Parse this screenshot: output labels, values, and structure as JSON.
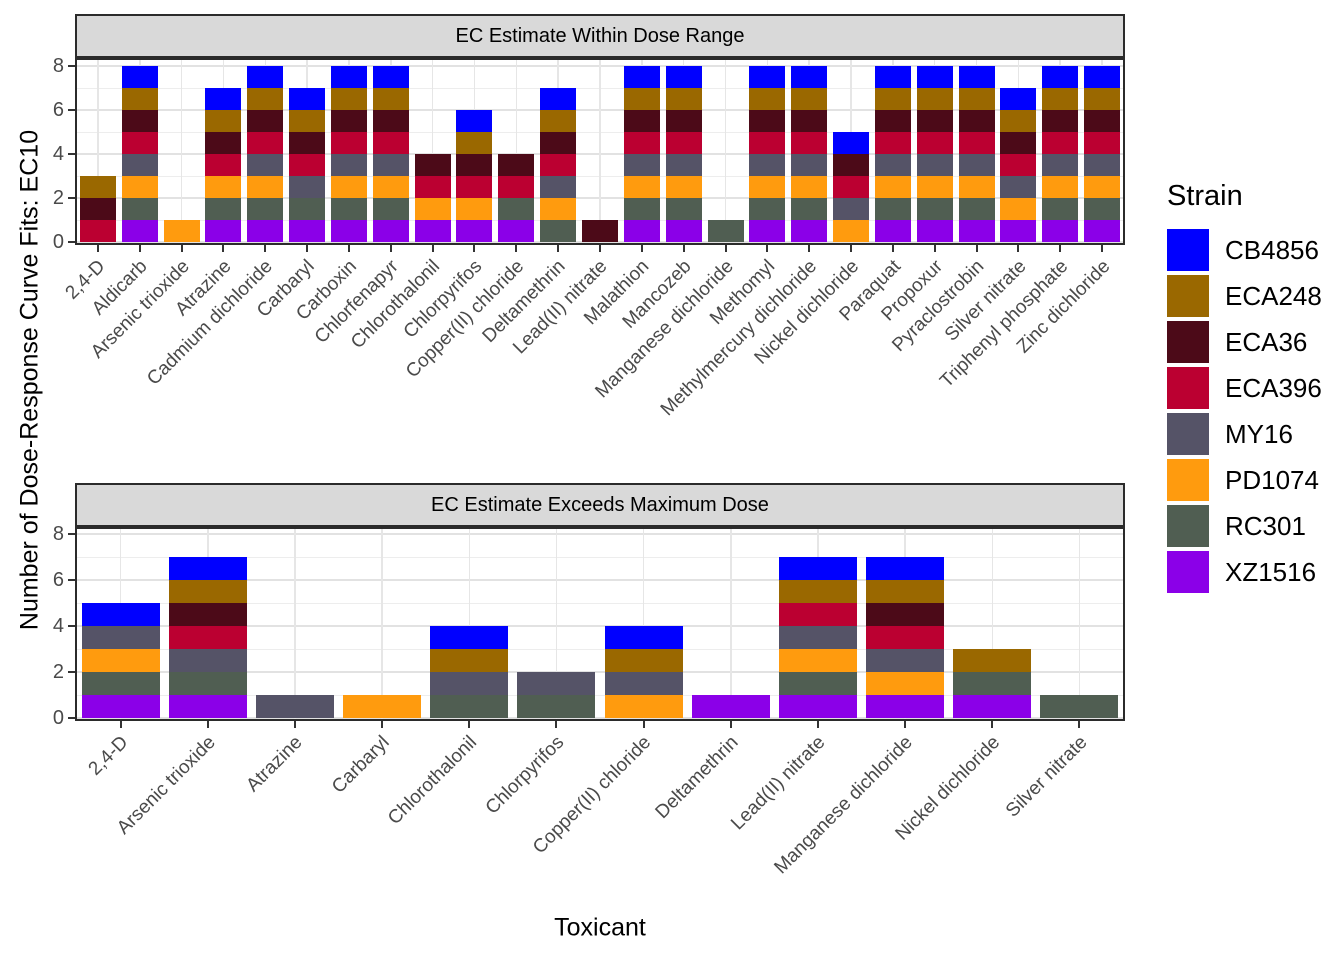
{
  "figure": {
    "x_axis_title": "Toxicant",
    "y_axis_title": "Number of Dose-Response Curve Fits: EC10"
  },
  "legend": {
    "title": "Strain",
    "entries": [
      {
        "label": "CB4856",
        "color": "#0000FF"
      },
      {
        "label": "ECA248",
        "color": "#9A6800"
      },
      {
        "label": "ECA36",
        "color": "#4C0A18"
      },
      {
        "label": "ECA396",
        "color": "#BB0031"
      },
      {
        "label": "MY16",
        "color": "#555367"
      },
      {
        "label": "PD1074",
        "color": "#FF9B0E"
      },
      {
        "label": "RC301",
        "color": "#505E52"
      },
      {
        "label": "XZ1516",
        "color": "#8B00E8"
      }
    ]
  },
  "stack_order_bottom_to_top": [
    "XZ1516",
    "RC301",
    "PD1074",
    "MY16",
    "ECA396",
    "ECA36",
    "ECA248",
    "CB4856"
  ],
  "chart_data": [
    {
      "type": "bar",
      "stacked": true,
      "facet_title": "EC Estimate Within Dose Range",
      "xlabel": "Toxicant",
      "ylabel": "Number of Dose-Response Curve Fits: EC10",
      "ylim": [
        0,
        8.4
      ],
      "yticks": [
        0,
        2,
        4,
        6,
        8
      ],
      "grid": true,
      "legend_position": "right",
      "categories": [
        "2,4-D",
        "Aldicarb",
        "Arsenic trioxide",
        "Atrazine",
        "Cadmium dichloride",
        "Carbaryl",
        "Carboxin",
        "Chlorfenapyr",
        "Chlorothalonil",
        "Chlorpyrifos",
        "Copper(II) chloride",
        "Deltamethrin",
        "Lead(II) nitrate",
        "Malathion",
        "Mancozeb",
        "Manganese dichloride",
        "Methomyl",
        "Methylmercury dichloride",
        "Nickel dichloride",
        "Paraquat",
        "Propoxur",
        "Pyraclostrobin",
        "Silver nitrate",
        "Triphenyl phosphate",
        "Zinc dichloride"
      ],
      "series": [
        {
          "name": "CB4856",
          "values": [
            0,
            1,
            0,
            1,
            1,
            1,
            1,
            1,
            0,
            1,
            0,
            1,
            0,
            1,
            1,
            0,
            1,
            1,
            1,
            1,
            1,
            1,
            1,
            1,
            1
          ]
        },
        {
          "name": "ECA248",
          "values": [
            1,
            1,
            0,
            1,
            1,
            1,
            1,
            1,
            0,
            1,
            0,
            1,
            0,
            1,
            1,
            0,
            1,
            1,
            0,
            1,
            1,
            1,
            1,
            1,
            1
          ]
        },
        {
          "name": "ECA36",
          "values": [
            1,
            1,
            0,
            1,
            1,
            1,
            1,
            1,
            1,
            1,
            1,
            1,
            1,
            1,
            1,
            0,
            1,
            1,
            1,
            1,
            1,
            1,
            1,
            1,
            1
          ]
        },
        {
          "name": "ECA396",
          "values": [
            1,
            1,
            0,
            1,
            1,
            1,
            1,
            1,
            1,
            1,
            1,
            1,
            0,
            1,
            1,
            0,
            1,
            1,
            1,
            1,
            1,
            1,
            1,
            1,
            1
          ]
        },
        {
          "name": "MY16",
          "values": [
            0,
            1,
            0,
            0,
            1,
            1,
            1,
            1,
            0,
            0,
            0,
            1,
            0,
            1,
            1,
            0,
            1,
            1,
            1,
            1,
            1,
            1,
            1,
            1,
            1
          ]
        },
        {
          "name": "PD1074",
          "values": [
            0,
            1,
            1,
            1,
            1,
            0,
            1,
            1,
            1,
            1,
            0,
            1,
            0,
            1,
            1,
            0,
            1,
            1,
            1,
            1,
            1,
            1,
            1,
            1,
            1
          ]
        },
        {
          "name": "RC301",
          "values": [
            0,
            1,
            0,
            1,
            1,
            1,
            1,
            1,
            0,
            0,
            1,
            1,
            0,
            1,
            1,
            1,
            1,
            1,
            0,
            1,
            1,
            1,
            0,
            1,
            1
          ]
        },
        {
          "name": "XZ1516",
          "values": [
            0,
            1,
            0,
            1,
            1,
            1,
            1,
            1,
            1,
            1,
            1,
            0,
            0,
            1,
            1,
            0,
            1,
            1,
            0,
            1,
            1,
            1,
            1,
            1,
            1
          ]
        }
      ]
    },
    {
      "type": "bar",
      "stacked": true,
      "facet_title": "EC Estimate Exceeds Maximum Dose",
      "xlabel": "Toxicant",
      "ylabel": "Number of Dose-Response Curve Fits: EC10",
      "ylim": [
        0,
        8.4
      ],
      "yticks": [
        0,
        2,
        4,
        6,
        8
      ],
      "grid": true,
      "legend_position": "right",
      "categories": [
        "2,4-D",
        "Arsenic trioxide",
        "Atrazine",
        "Carbaryl",
        "Chlorothalonil",
        "Chlorpyrifos",
        "Copper(II) chloride",
        "Deltamethrin",
        "Lead(II) nitrate",
        "Manganese dichloride",
        "Nickel dichloride",
        "Silver nitrate"
      ],
      "series": [
        {
          "name": "CB4856",
          "values": [
            1,
            1,
            0,
            0,
            1,
            0,
            1,
            0,
            1,
            1,
            0,
            0
          ]
        },
        {
          "name": "ECA248",
          "values": [
            0,
            1,
            0,
            0,
            1,
            0,
            1,
            0,
            1,
            1,
            1,
            0
          ]
        },
        {
          "name": "ECA36",
          "values": [
            0,
            1,
            0,
            0,
            0,
            0,
            0,
            0,
            0,
            1,
            0,
            0
          ]
        },
        {
          "name": "ECA396",
          "values": [
            0,
            1,
            0,
            0,
            0,
            0,
            0,
            0,
            1,
            1,
            0,
            0
          ]
        },
        {
          "name": "MY16",
          "values": [
            1,
            1,
            1,
            0,
            1,
            1,
            1,
            0,
            1,
            1,
            0,
            0
          ]
        },
        {
          "name": "PD1074",
          "values": [
            1,
            0,
            0,
            1,
            0,
            0,
            1,
            0,
            1,
            1,
            0,
            0
          ]
        },
        {
          "name": "RC301",
          "values": [
            1,
            1,
            0,
            0,
            1,
            1,
            0,
            0,
            1,
            0,
            1,
            1
          ]
        },
        {
          "name": "XZ1516",
          "values": [
            1,
            1,
            0,
            0,
            0,
            0,
            0,
            1,
            1,
            1,
            1,
            0
          ]
        }
      ]
    }
  ]
}
